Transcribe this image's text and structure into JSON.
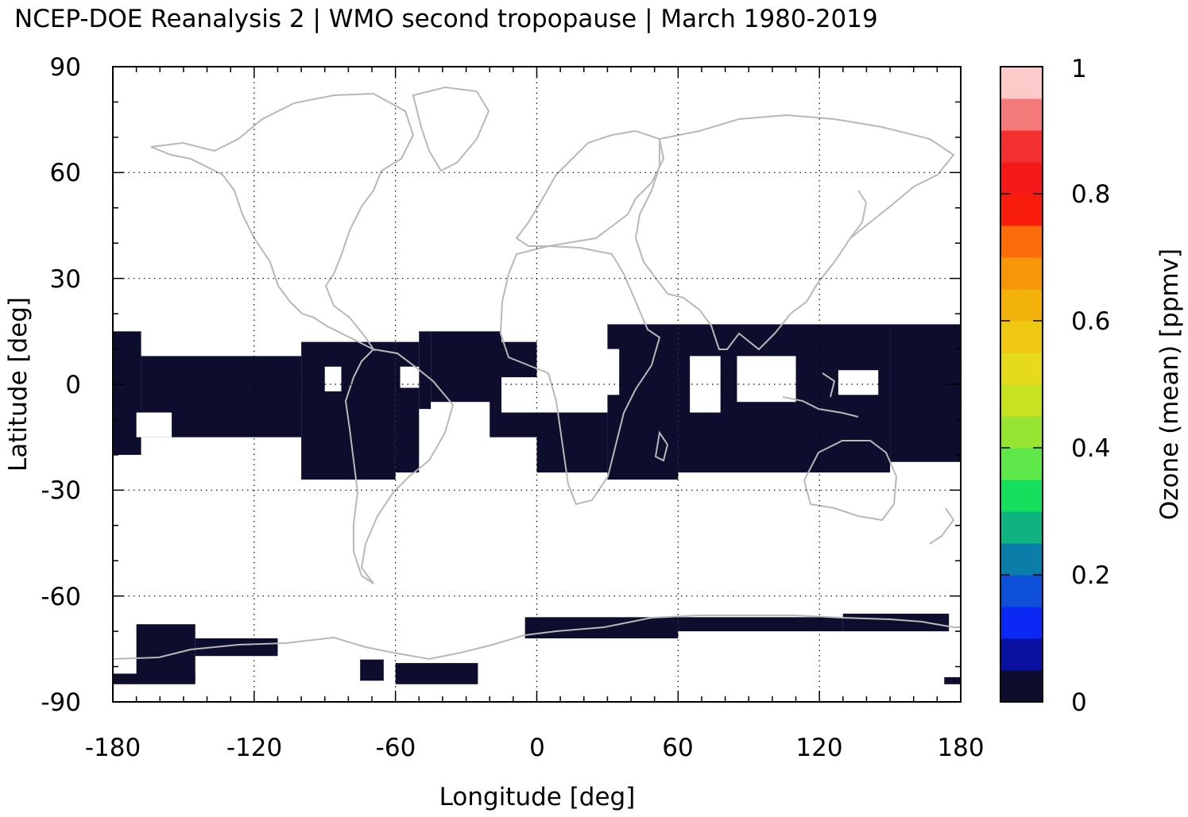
{
  "title": "NCEP-DOE Reanalysis 2 | WMO second tropopause | March 1980-2019",
  "map": {
    "projection": "equirectangular",
    "lon_range": [
      -180,
      180
    ],
    "lat_range": [
      -90,
      90
    ],
    "xlabel": "Longitude [deg]",
    "ylabel": "Latitude [deg]",
    "xticks": [
      "-180",
      "-120",
      "-60",
      "0",
      "60",
      "120",
      "180"
    ],
    "yticks": [
      "90",
      "60",
      "30",
      "0",
      "-30",
      "-60",
      "-90"
    ],
    "grid": "dotted",
    "coastline_color": "#b8b8b8",
    "fill_color": "#0d0d2d",
    "fill_meaning": "mean ozone at second tropopause near 0 ppmv",
    "filled_regions": [
      {
        "lon": [
          -180,
          -168
        ],
        "lat": [
          -20,
          15
        ]
      },
      {
        "lon": [
          -168,
          -100
        ],
        "lat": [
          -15,
          8
        ]
      },
      {
        "lon": [
          -100,
          -60
        ],
        "lat": [
          -27,
          12
        ]
      },
      {
        "lon": [
          -60,
          -50
        ],
        "lat": [
          -25,
          12
        ]
      },
      {
        "lon": [
          -50,
          -45
        ],
        "lat": [
          -7,
          15
        ]
      },
      {
        "lon": [
          -45,
          -15
        ],
        "lat": [
          -5,
          15
        ]
      },
      {
        "lon": [
          -20,
          0
        ],
        "lat": [
          -15,
          12
        ]
      },
      {
        "lon": [
          0,
          30
        ],
        "lat": [
          -25,
          -8
        ]
      },
      {
        "lon": [
          30,
          60
        ],
        "lat": [
          -27,
          17
        ]
      },
      {
        "lon": [
          60,
          110
        ],
        "lat": [
          -25,
          17
        ]
      },
      {
        "lon": [
          110,
          150
        ],
        "lat": [
          -25,
          17
        ]
      },
      {
        "lon": [
          150,
          180
        ],
        "lat": [
          -22,
          17
        ]
      },
      {
        "lon": [
          -170,
          -145
        ],
        "lat": [
          -84,
          -68
        ]
      },
      {
        "lon": [
          -145,
          -110
        ],
        "lat": [
          -77,
          -72
        ]
      },
      {
        "lon": [
          -180,
          -145
        ],
        "lat": [
          -85,
          -82
        ]
      },
      {
        "lon": [
          -75,
          -65
        ],
        "lat": [
          -84,
          -78
        ]
      },
      {
        "lon": [
          -60,
          -25
        ],
        "lat": [
          -85,
          -79
        ]
      },
      {
        "lon": [
          -5,
          60
        ],
        "lat": [
          -72,
          -66
        ]
      },
      {
        "lon": [
          60,
          130
        ],
        "lat": [
          -70,
          -66
        ]
      },
      {
        "lon": [
          130,
          175
        ],
        "lat": [
          -70,
          -65
        ]
      },
      {
        "lon": [
          173,
          180
        ],
        "lat": [
          -85,
          -83
        ]
      }
    ],
    "holes": [
      {
        "lon": [
          -170,
          -155
        ],
        "lat": [
          -15,
          -8
        ]
      },
      {
        "lon": [
          -90,
          -83
        ],
        "lat": [
          -2,
          5
        ]
      },
      {
        "lon": [
          -58,
          -50
        ],
        "lat": [
          -1,
          5
        ]
      },
      {
        "lon": [
          -15,
          0
        ],
        "lat": [
          -8,
          2
        ]
      },
      {
        "lon": [
          5,
          35
        ],
        "lat": [
          -3,
          10
        ]
      },
      {
        "lon": [
          65,
          78
        ],
        "lat": [
          -8,
          8
        ]
      },
      {
        "lon": [
          85,
          110
        ],
        "lat": [
          -5,
          8
        ]
      },
      {
        "lon": [
          128,
          145
        ],
        "lat": [
          -3,
          4
        ]
      }
    ]
  },
  "colorbar": {
    "label": "Ozone (mean) [ppmv]",
    "min": 0,
    "max": 1,
    "ticks": [
      "0",
      "0.2",
      "0.4",
      "0.6",
      "0.8",
      "1"
    ],
    "colors": [
      "#0d0d2d",
      "#0a10a0",
      "#0b28f4",
      "#0e4fd8",
      "#0a7da8",
      "#0fb37f",
      "#15e05e",
      "#5ee84a",
      "#98e432",
      "#c7e221",
      "#e5da1c",
      "#efc812",
      "#f3b10c",
      "#f6970a",
      "#fa6c0a",
      "#f81c0d",
      "#f41818",
      "#f33030",
      "#f47a7a",
      "#fdcaca"
    ]
  }
}
